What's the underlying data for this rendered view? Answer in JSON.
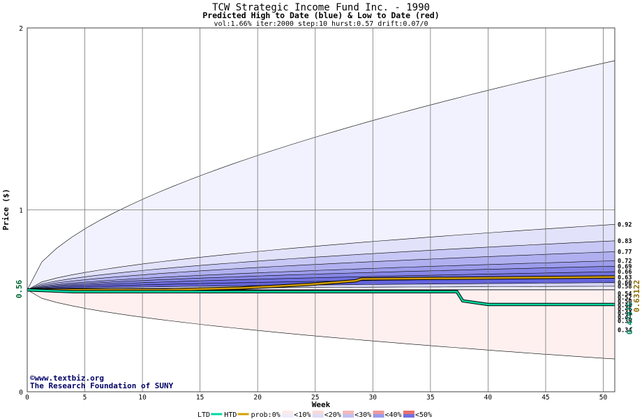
{
  "chart_data": {
    "type": "area",
    "title": "TCW Strategic Income Fund Inc. - 1990",
    "subtitle": "Predicted High to Date (blue) &  Low to Date (red)",
    "params": "vol:1.66% iter:2000 step:10 hurst:0.57 drift:0.07/0",
    "xlabel": "Week",
    "ylabel": "Price ($)",
    "xlim": [
      0,
      51
    ],
    "ylim": [
      0,
      2
    ],
    "x_ticks": [
      0,
      5,
      10,
      15,
      20,
      25,
      30,
      35,
      40,
      45,
      50
    ],
    "y_ticks": [
      0,
      1,
      2
    ],
    "start_price": 0.56,
    "start_label": "0.56",
    "grid": true,
    "upper_bands": [
      {
        "end": 1.82,
        "label": "",
        "color": "#f2f2ff"
      },
      {
        "end": 0.92,
        "label": "0.92",
        "color": "#e2e2fa"
      },
      {
        "end": 0.83,
        "label": "0.83",
        "color": "#c8c8f6"
      },
      {
        "end": 0.77,
        "label": "0.77",
        "color": "#b0b0f0"
      },
      {
        "end": 0.72,
        "label": "0.72",
        "color": "#9c9cec"
      },
      {
        "end": 0.69,
        "label": "0.69",
        "color": "#8686e6"
      },
      {
        "end": 0.66,
        "label": "0.66",
        "color": "#7070e0"
      },
      {
        "end": 0.63,
        "label": "0.63",
        "color": "#6464dc"
      },
      {
        "end": 0.6,
        "label": "0.60",
        "color": "#d4d4f6"
      },
      {
        "end": 0.58,
        "label": "0.58",
        "color": "#efeffc"
      }
    ],
    "lower_bands": [
      {
        "end": 0.54,
        "label": "0.54",
        "color": "#fbe2e2"
      },
      {
        "end": 0.52,
        "label": "0.52",
        "color": "#f8d0d0"
      },
      {
        "end": 0.5,
        "label": "0.50",
        "color": "#f4baba"
      },
      {
        "end": 0.48,
        "label": "0.48",
        "color": "#f2a8a8"
      },
      {
        "end": 0.46,
        "label": "0.46",
        "color": "#ee9898"
      },
      {
        "end": 0.44,
        "label": "0.44",
        "color": "#ec8c8c"
      },
      {
        "end": 0.41,
        "label": "0.41",
        "color": "#f6b8b8"
      },
      {
        "end": 0.39,
        "label": "0.39",
        "color": "#f8cccc"
      },
      {
        "end": 0.34,
        "label": "0.34",
        "color": "#fbe0e0"
      },
      {
        "end": 0.18,
        "label": "",
        "color": "#fff0f0"
      }
    ],
    "series": [
      {
        "name": "HTD",
        "color": "#d4a000",
        "end_label": "0.63122",
        "points": [
          [
            0,
            0.56
          ],
          [
            12,
            0.56
          ],
          [
            18.5,
            0.57
          ],
          [
            24.5,
            0.59
          ],
          [
            28.5,
            0.61
          ],
          [
            29,
            0.62
          ],
          [
            51,
            0.63122
          ]
        ]
      },
      {
        "name": "LTD",
        "color": "#00d8a0",
        "end_label": "0.47976",
        "points": [
          [
            0,
            0.56
          ],
          [
            4,
            0.55
          ],
          [
            37.3,
            0.55
          ],
          [
            37.8,
            0.5
          ],
          [
            40,
            0.48
          ],
          [
            51,
            0.47976
          ]
        ]
      }
    ],
    "legend": {
      "items": [
        {
          "label": "LTD",
          "type": "line",
          "color": "#00d8a0"
        },
        {
          "label": "HTD",
          "type": "line",
          "color": "#d4a000"
        },
        {
          "label": "prob:0%",
          "type": "text"
        },
        {
          "label": "<10%",
          "type": "swatch",
          "colors": [
            "#fbeaea",
            "#ececfb"
          ]
        },
        {
          "label": "<20%",
          "type": "swatch",
          "colors": [
            "#f8d8d8",
            "#dcdcf8"
          ]
        },
        {
          "label": "<30%",
          "type": "swatch",
          "colors": [
            "#f2b8b8",
            "#c0c0f2"
          ]
        },
        {
          "label": "<40%",
          "type": "swatch",
          "colors": [
            "#ee9a9a",
            "#9a9aec"
          ]
        },
        {
          "label": "<50%",
          "type": "swatch",
          "colors": [
            "#e87070",
            "#7070e0"
          ]
        }
      ]
    },
    "credits": [
      "©www.textbiz.org",
      "The Research Foundation of SUNY"
    ]
  }
}
